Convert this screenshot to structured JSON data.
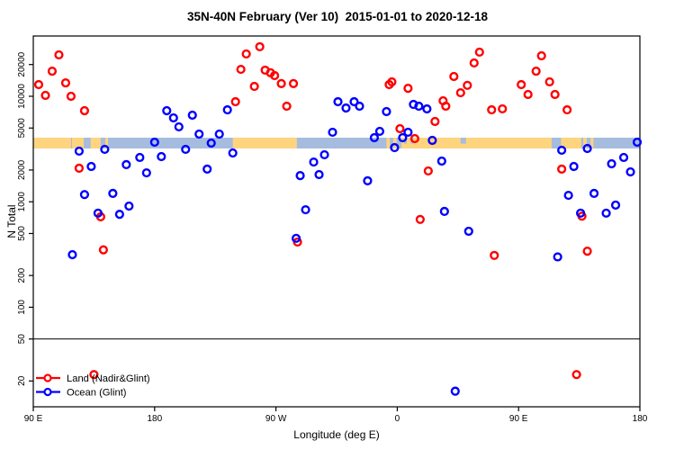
{
  "title": "35N-40N February (Ver 10)  2015-01-01 to 2020-12-18",
  "legend": {
    "items": [
      {
        "label": "Land (Nadir&Glint)",
        "color": "#ff0000"
      },
      {
        "label": "Ocean (Glint)",
        "color": "#0000ff"
      }
    ]
  },
  "chart_data": {
    "type": "scatter",
    "title": "35N-40N February (Ver 10)  2015-01-01 to 2020-12-18",
    "xlabel": "Longitude (deg E)",
    "ylabel": "N Total",
    "x_axis": {
      "units": "deg E (wraps past 180)",
      "range": [
        90,
        540
      ],
      "tick_values": [
        90,
        180,
        270,
        360,
        450,
        540
      ],
      "tick_labels": [
        "90 E",
        "180",
        "90 W",
        "0",
        "90 E",
        "180"
      ]
    },
    "y_axis": {
      "scale": "log",
      "range": [
        11,
        37000
      ],
      "tick_values": [
        20,
        50,
        100,
        200,
        500,
        1000,
        2000,
        5000,
        10000,
        20000
      ]
    },
    "reference_line_value": 50,
    "land_ocean_band": {
      "value_top": 4050,
      "value_bottom": 3200,
      "ocean_color": "#a6bcdf",
      "land_color": "#ffd47e",
      "land_segments_deg_e": [
        [
          90,
          118
        ],
        [
          118.7,
          127.4
        ],
        [
          132.5,
          140
        ],
        [
          143.4,
          145.4
        ],
        [
          238,
          285.5
        ],
        [
          352,
          354.5
        ],
        [
          357,
          359.5
        ],
        [
          363,
          474.5
        ],
        [
          481.5,
          496.5
        ],
        [
          498,
          500.5
        ],
        [
          503.5,
          505.5
        ]
      ],
      "ocean_notches_deg_e": [
        [
          365,
          367
        ],
        [
          370,
          372
        ],
        [
          407,
          411
        ]
      ]
    },
    "series": [
      {
        "name": "Land (Nadir&Glint)",
        "color": "#ff0000",
        "points": [
          [
            109,
            24700
          ],
          [
            104,
            17300
          ],
          [
            94,
            12900
          ],
          [
            99,
            10200
          ],
          [
            114,
            13400
          ],
          [
            118,
            10000
          ],
          [
            128,
            7300
          ],
          [
            124,
            2080
          ],
          [
            140,
            720
          ],
          [
            142,
            350
          ],
          [
            135,
            23
          ],
          [
            240,
            8880
          ],
          [
            244,
            18000
          ],
          [
            248,
            25200
          ],
          [
            258,
            29500
          ],
          [
            262,
            17700
          ],
          [
            266,
            16700
          ],
          [
            269,
            15700
          ],
          [
            254,
            12400
          ],
          [
            274,
            13200
          ],
          [
            283,
            13200
          ],
          [
            278,
            8050
          ],
          [
            286,
            415
          ],
          [
            354,
            12900
          ],
          [
            356,
            13700
          ],
          [
            368,
            11900
          ],
          [
            362,
            4930
          ],
          [
            373,
            3970
          ],
          [
            388,
            5770
          ],
          [
            383,
            1960
          ],
          [
            377,
            680
          ],
          [
            394,
            9060
          ],
          [
            396,
            8050
          ],
          [
            402,
            15400
          ],
          [
            407,
            10800
          ],
          [
            412,
            12700
          ],
          [
            417,
            20700
          ],
          [
            421,
            26200
          ],
          [
            430,
            7440
          ],
          [
            432,
            310
          ],
          [
            438,
            7600
          ],
          [
            467,
            24200
          ],
          [
            463,
            17300
          ],
          [
            452,
            12900
          ],
          [
            457,
            10400
          ],
          [
            473,
            13700
          ],
          [
            477,
            10400
          ],
          [
            486,
            7440
          ],
          [
            482,
            2040
          ],
          [
            497,
            730
          ],
          [
            501,
            340
          ],
          [
            493,
            23
          ]
        ]
      },
      {
        "name": "Ocean (Glint)",
        "color": "#0000ff",
        "points": [
          [
            189,
            7300
          ],
          [
            194,
            6240
          ],
          [
            198,
            5130
          ],
          [
            208,
            6620
          ],
          [
            234,
            7440
          ],
          [
            180,
            3670
          ],
          [
            203,
            3140
          ],
          [
            213,
            4380
          ],
          [
            228,
            4380
          ],
          [
            222,
            3600
          ],
          [
            238,
            2900
          ],
          [
            219,
            2040
          ],
          [
            124,
            3020
          ],
          [
            143,
            3140
          ],
          [
            133,
            2160
          ],
          [
            169,
            2630
          ],
          [
            159,
            2250
          ],
          [
            185,
            2680
          ],
          [
            174,
            1880
          ],
          [
            128,
            1170
          ],
          [
            149,
            1200
          ],
          [
            161,
            910
          ],
          [
            154,
            760
          ],
          [
            138,
            780
          ],
          [
            119,
            315
          ],
          [
            298,
            2380
          ],
          [
            306,
            2790
          ],
          [
            302,
            1810
          ],
          [
            288,
            1770
          ],
          [
            312,
            4560
          ],
          [
            316,
            8880
          ],
          [
            292,
            840
          ],
          [
            285,
            450
          ],
          [
            322,
            7740
          ],
          [
            328,
            8880
          ],
          [
            332,
            8050
          ],
          [
            352,
            7160
          ],
          [
            372,
            8370
          ],
          [
            376,
            8050
          ],
          [
            382,
            7590
          ],
          [
            347,
            4650
          ],
          [
            343,
            4050
          ],
          [
            364,
            4050
          ],
          [
            368,
            4560
          ],
          [
            358,
            3260
          ],
          [
            386,
            3820
          ],
          [
            393,
            2430
          ],
          [
            338,
            1580
          ],
          [
            395,
            810
          ],
          [
            413,
            525
          ],
          [
            403,
            16
          ],
          [
            479,
            300
          ],
          [
            482,
            3080
          ],
          [
            501,
            3200
          ],
          [
            491,
            2160
          ],
          [
            487,
            1150
          ],
          [
            506,
            1200
          ],
          [
            522,
            930
          ],
          [
            515,
            780
          ],
          [
            496,
            780
          ],
          [
            528,
            2630
          ],
          [
            519,
            2290
          ],
          [
            533,
            1920
          ],
          [
            538,
            3670
          ]
        ]
      }
    ]
  }
}
